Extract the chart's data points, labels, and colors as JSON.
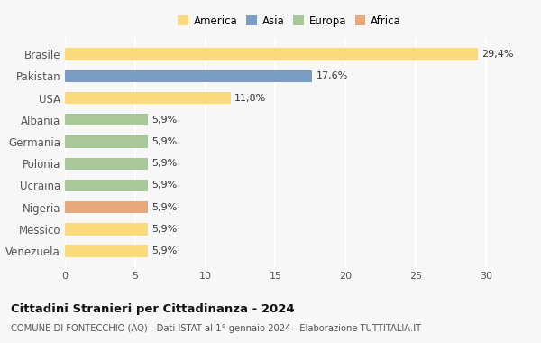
{
  "categories": [
    "Venezuela",
    "Messico",
    "Nigeria",
    "Ucraina",
    "Polonia",
    "Germania",
    "Albania",
    "USA",
    "Pakistan",
    "Brasile"
  ],
  "values": [
    5.9,
    5.9,
    5.9,
    5.9,
    5.9,
    5.9,
    5.9,
    11.8,
    17.6,
    29.4
  ],
  "colors": [
    "#FADA7A",
    "#FADA7A",
    "#E8A87C",
    "#A8C89A",
    "#A8C89A",
    "#A8C89A",
    "#A8C89A",
    "#FADA7A",
    "#7B9DC4",
    "#FADA7A"
  ],
  "labels": [
    "5,9%",
    "5,9%",
    "5,9%",
    "5,9%",
    "5,9%",
    "5,9%",
    "5,9%",
    "11,8%",
    "17,6%",
    "29,4%"
  ],
  "legend": [
    {
      "label": "America",
      "color": "#FADA7A"
    },
    {
      "label": "Asia",
      "color": "#7B9DC4"
    },
    {
      "label": "Europa",
      "color": "#A8C89A"
    },
    {
      "label": "Africa",
      "color": "#E8A87C"
    }
  ],
  "xlim": [
    0,
    32
  ],
  "xticks": [
    0,
    5,
    10,
    15,
    20,
    25,
    30
  ],
  "title": "Cittadini Stranieri per Cittadinanza - 2024",
  "subtitle": "COMUNE DI FONTECCHIO (AQ) - Dati ISTAT al 1° gennaio 2024 - Elaborazione TUTTITALIA.IT",
  "bg_color": "#f7f7f7",
  "bar_height": 0.55
}
